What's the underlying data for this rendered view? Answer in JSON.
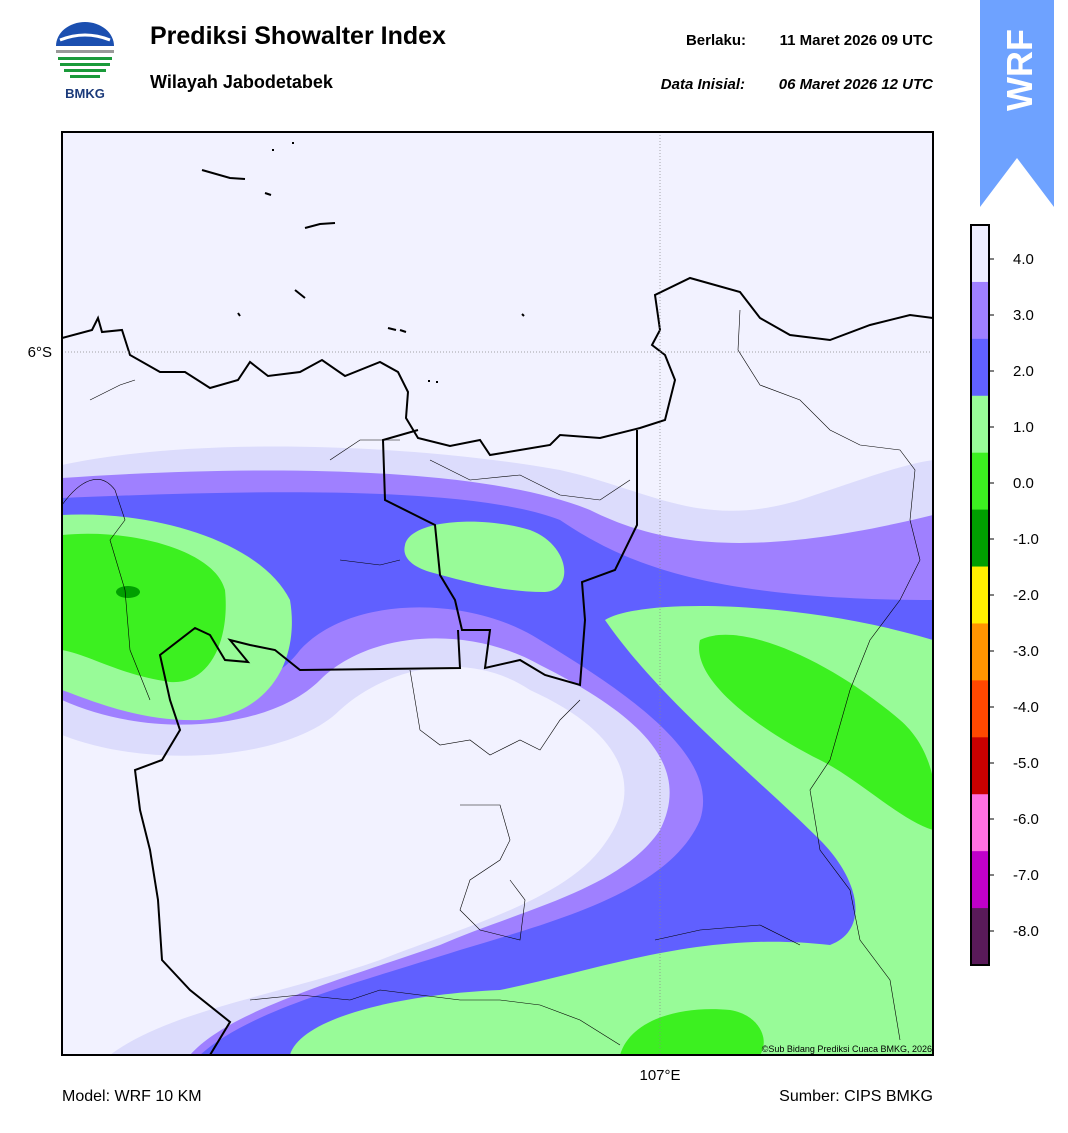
{
  "header": {
    "logo_text": "BMKG",
    "title": "Prediksi Showalter Index",
    "subtitle": "Wilayah Jabodetabek",
    "valid_label": "Berlaku:",
    "valid_time": "11 Maret 2026 09 UTC",
    "init_label": "Data Inisial:",
    "init_time": "06 Maret 2026 12 UTC"
  },
  "badge": "WRF",
  "map": {
    "lat_label": "6°S",
    "lon_label": "107°E",
    "credit": "©Sub Bidang Prediksi Cuaca BMKG, 2026"
  },
  "colorbar": {
    "ticks": [
      "4.0",
      "3.0",
      "2.0",
      "1.0",
      "0.0",
      "-1.0",
      "-2.0",
      "-3.0",
      "-4.0",
      "-5.0",
      "-6.0",
      "-7.0",
      "-8.0"
    ],
    "colors": [
      "#eeeeff",
      "#9f80ff",
      "#6060ff",
      "#98fb98",
      "#3cf020",
      "#009f00",
      "#fff000",
      "#ff9400",
      "#ff4800",
      "#c80000",
      "#ff70e0",
      "#c000c8",
      "#5a1a5a"
    ]
  },
  "footer": {
    "model": "Model: WRF 10 KM",
    "source": "Sumber: CIPS BMKG"
  }
}
